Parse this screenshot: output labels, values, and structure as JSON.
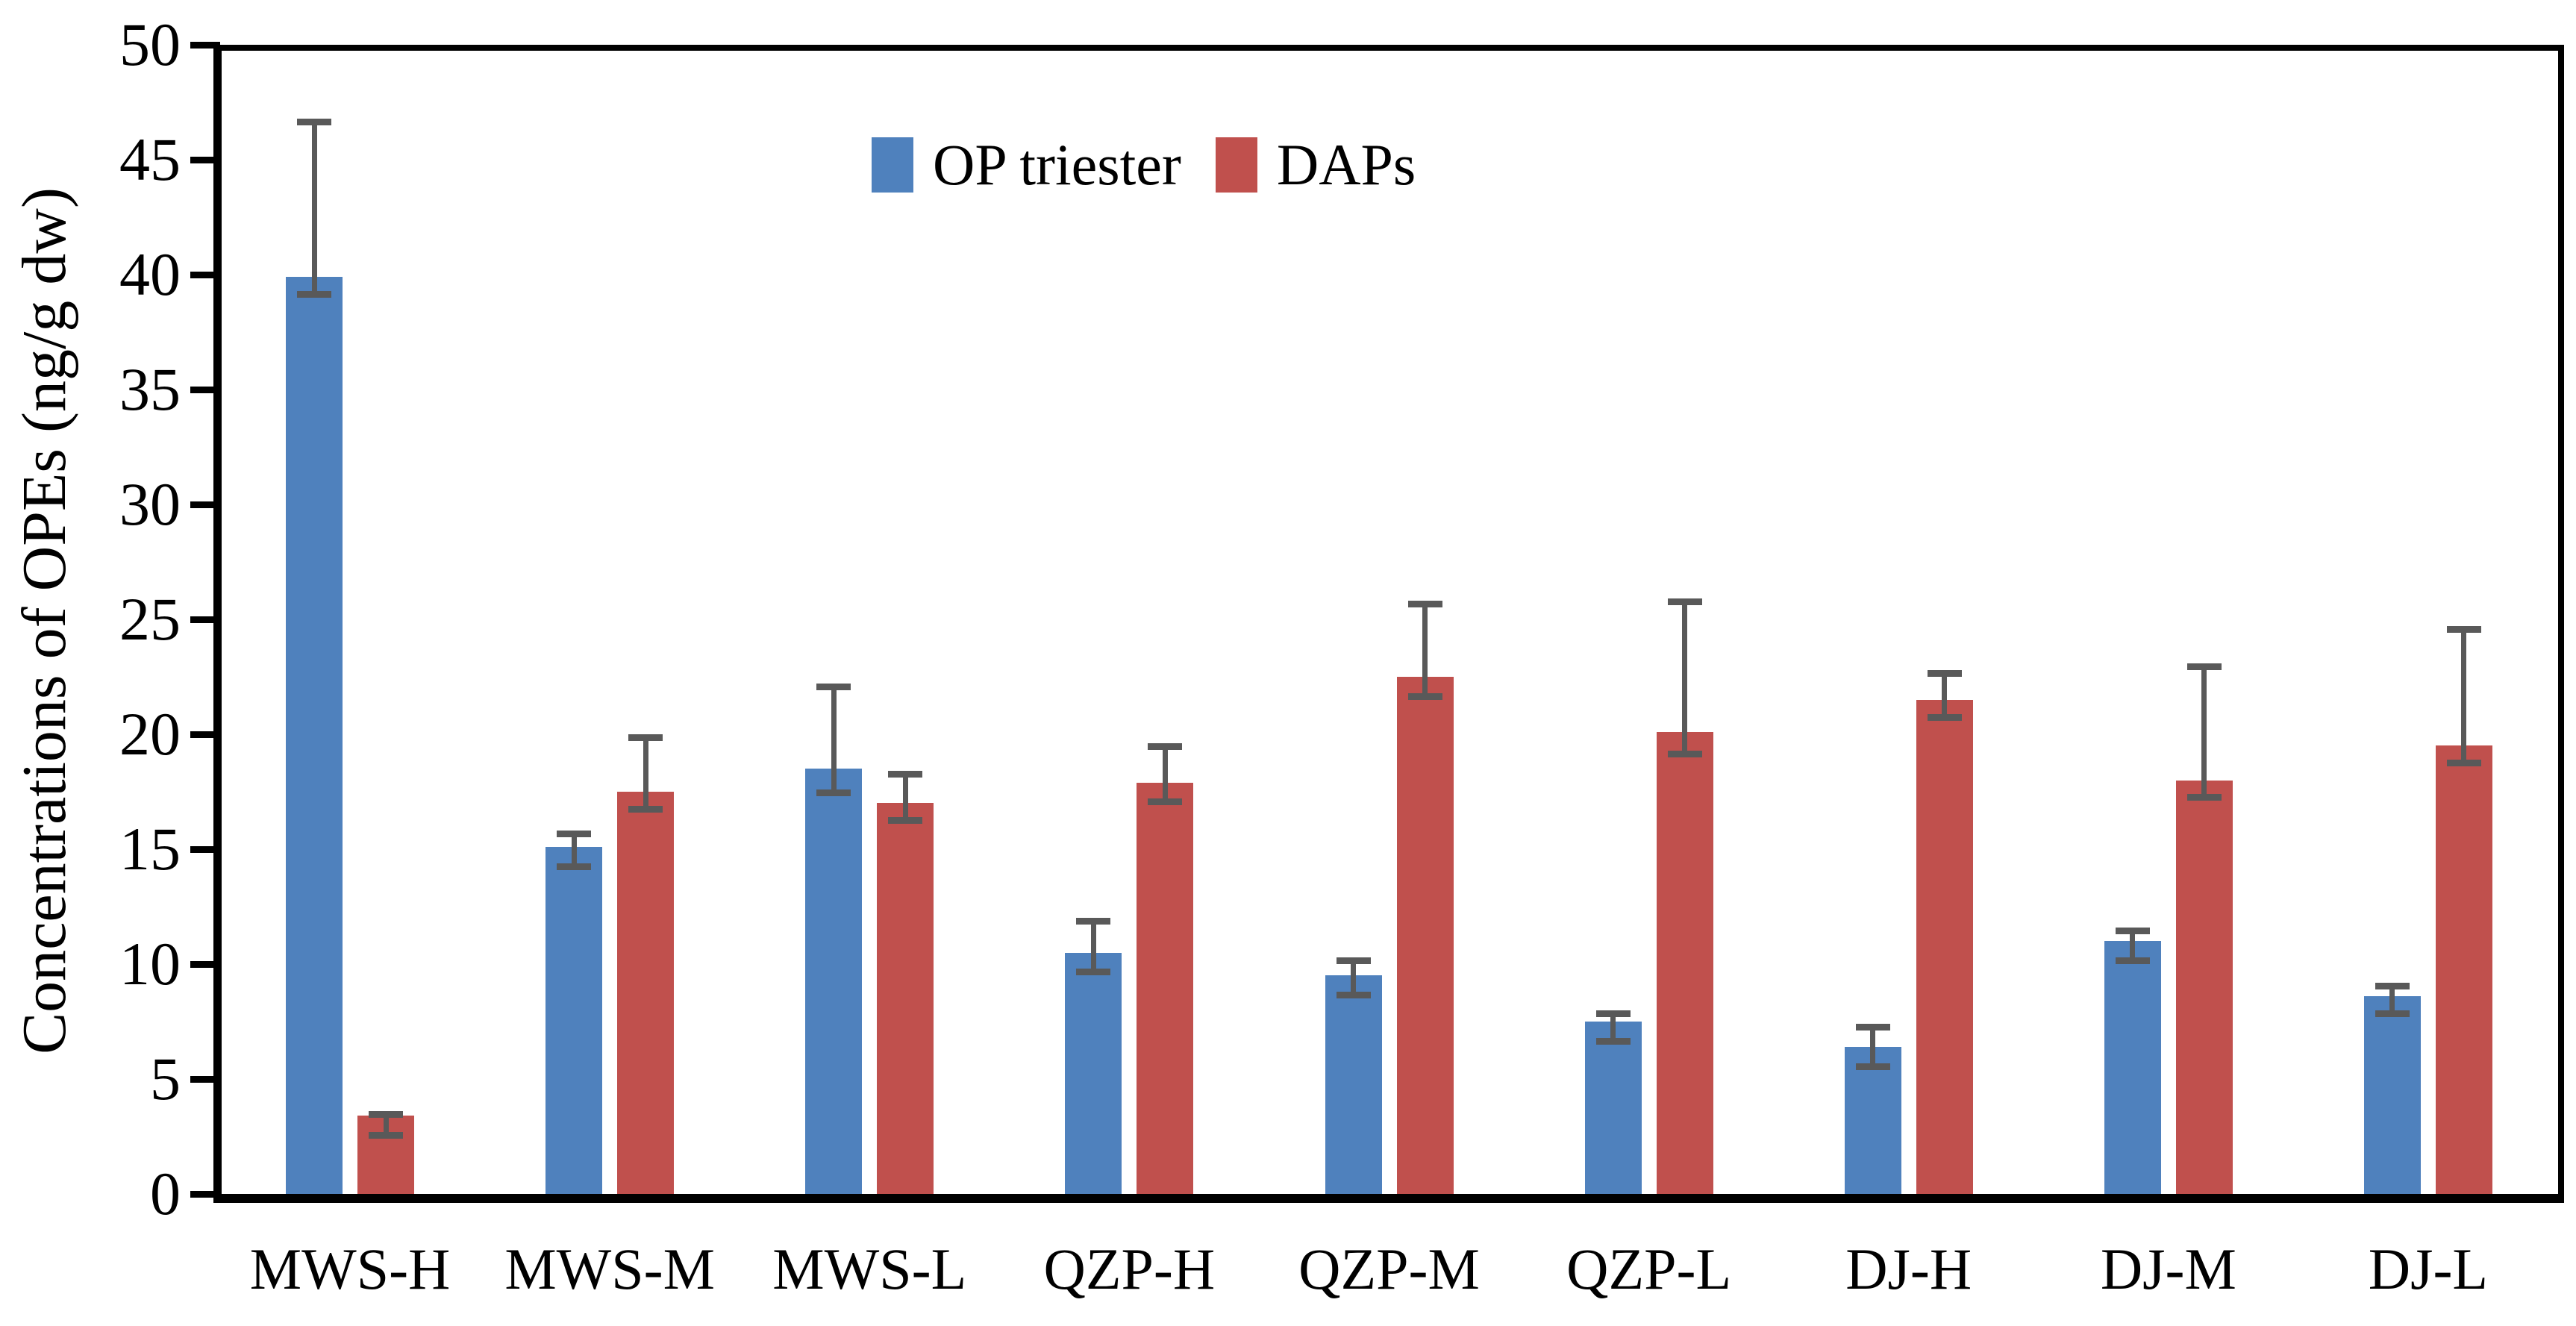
{
  "chart_data": {
    "type": "bar",
    "title": "",
    "xlabel": "",
    "ylabel": "Concentrations of OPEs (ng/g dw)",
    "ylim": [
      0,
      50
    ],
    "yticks": [
      0,
      5,
      10,
      15,
      20,
      25,
      30,
      35,
      40,
      45,
      50
    ],
    "grid": false,
    "legend_position": "top-center",
    "categories": [
      "MWS-H",
      "MWS-M",
      "MWS-L",
      "QZP-H",
      "QZP-M",
      "QZP-L",
      "DJ-H",
      "DJ-M",
      "DJ-L"
    ],
    "series": [
      {
        "name": "OP triester",
        "color": "#4F81BD",
        "values": [
          39.9,
          15.1,
          18.5,
          10.5,
          9.5,
          7.5,
          6.4,
          11.0,
          8.6
        ],
        "err_low": [
          39.0,
          14.1,
          17.3,
          9.5,
          8.5,
          6.5,
          5.4,
          10.0,
          7.7
        ],
        "err_high": [
          46.8,
          15.8,
          22.2,
          12.0,
          10.3,
          8.0,
          7.4,
          11.6,
          9.2
        ]
      },
      {
        "name": "DAPs",
        "color": "#C0504D",
        "values": [
          3.4,
          17.5,
          17.0,
          17.9,
          22.5,
          20.1,
          21.5,
          18.0,
          19.5
        ],
        "err_low": [
          2.4,
          16.6,
          16.1,
          16.9,
          21.5,
          19.0,
          20.6,
          17.1,
          18.6
        ],
        "err_high": [
          3.6,
          20.0,
          18.4,
          19.6,
          25.8,
          25.9,
          22.8,
          23.1,
          24.7
        ]
      }
    ],
    "error_bar_color": "#595959",
    "axis_color": "#000000"
  }
}
